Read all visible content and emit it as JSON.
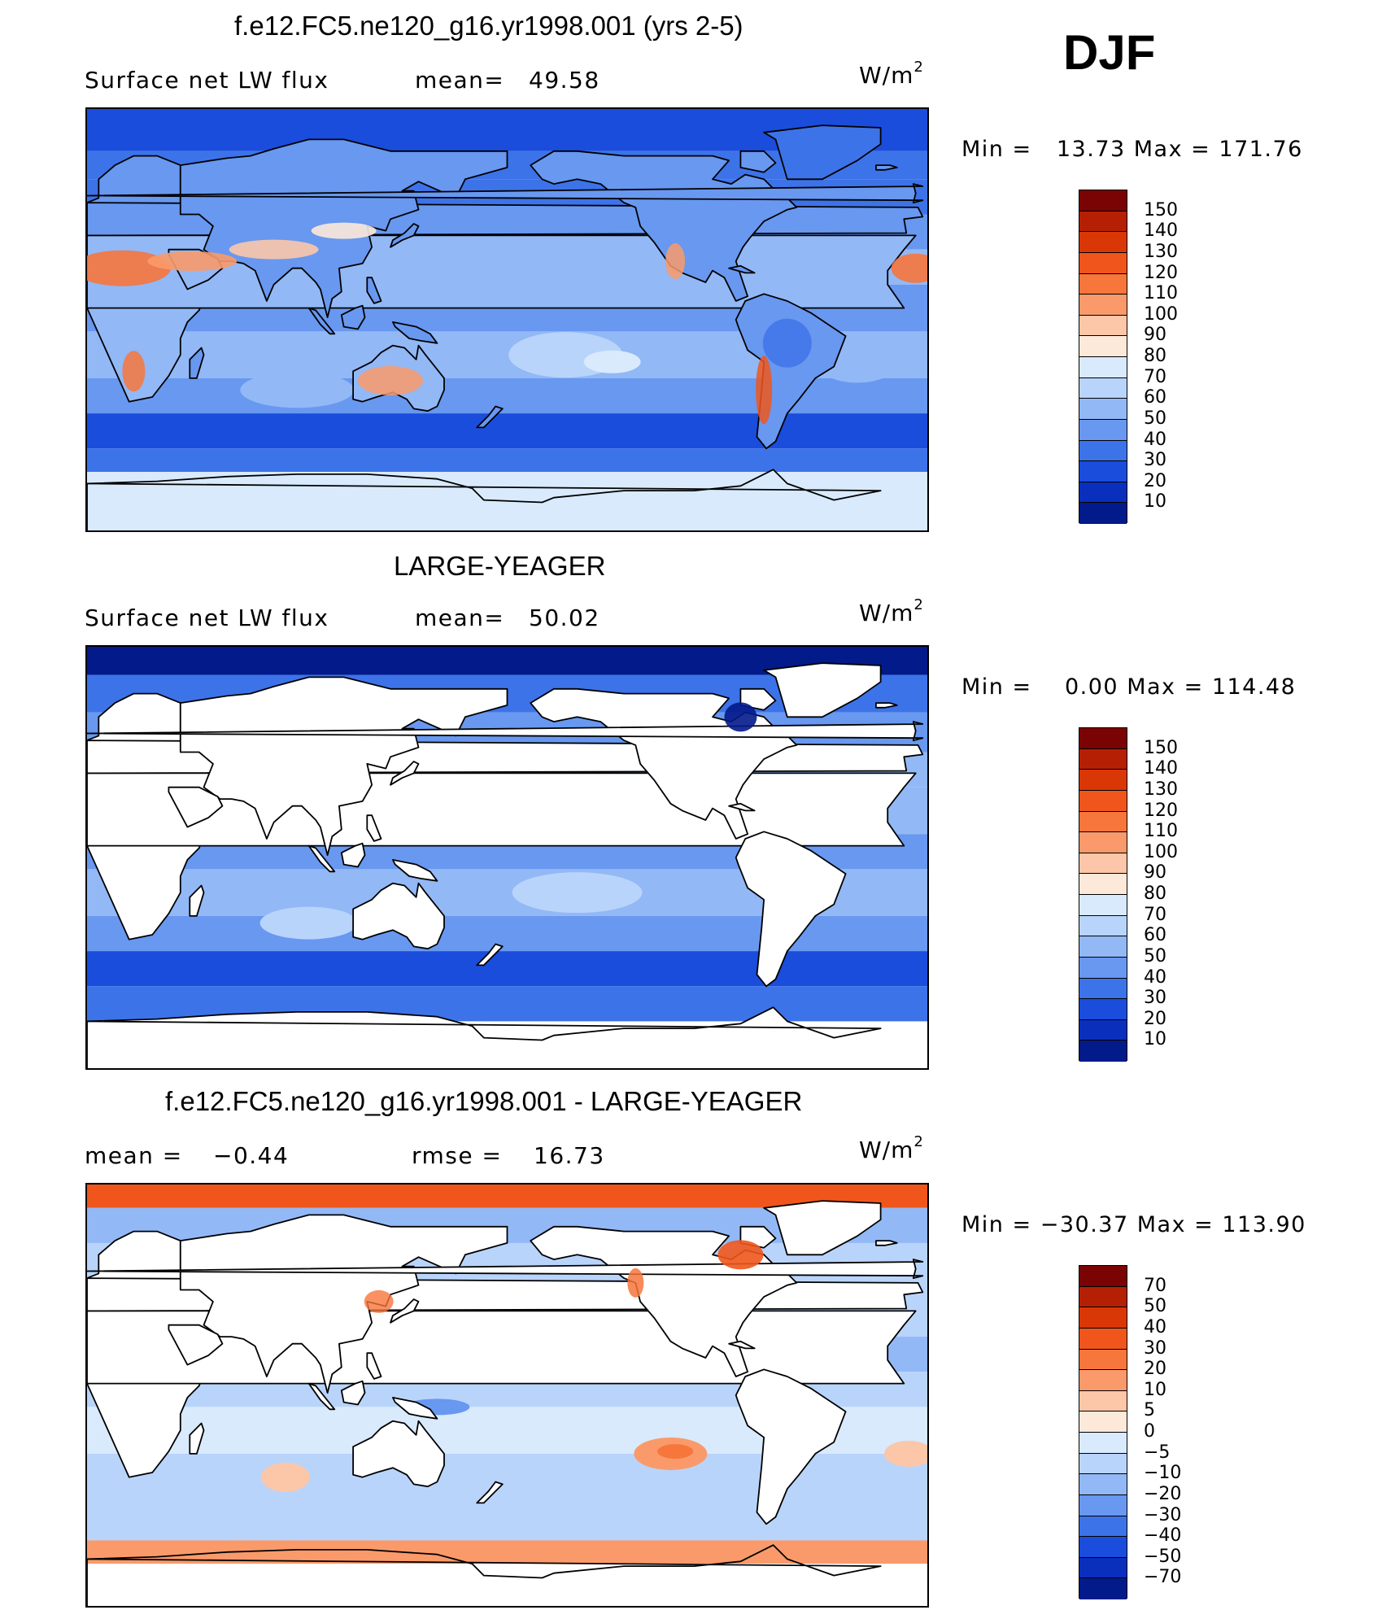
{
  "season": "DJF",
  "panels": [
    {
      "title": "f.e12.FC5.ne120_g16.yr1998.001 (yrs 2-5)",
      "left_label": "Surface net LW flux",
      "stat_label": "mean=",
      "stat_value": "49.58",
      "units_base": "W/m",
      "units_exp": "2",
      "min_label": "Min =",
      "min_value": "13.73",
      "max_label": "Max =",
      "max_value": "171.76",
      "kind": "model",
      "colorbar": {
        "labels": [
          "150",
          "140",
          "130",
          "120",
          "110",
          "100",
          "90",
          "80",
          "70",
          "60",
          "50",
          "40",
          "30",
          "20",
          "10"
        ],
        "colors": [
          "#7a0403",
          "#b52004",
          "#d93806",
          "#f0561c",
          "#f7763c",
          "#fa9a6a",
          "#fcc6a8",
          "#fde9d9",
          "#d8eafc",
          "#b9d4fb",
          "#92b8f6",
          "#6898f0",
          "#3d73e8",
          "#1a4ddb",
          "#0a2fbd",
          "#031a8a"
        ]
      }
    },
    {
      "title": "LARGE-YEAGER",
      "left_label": "Surface net LW flux",
      "stat_label": "mean=",
      "stat_value": "50.02",
      "units_base": "W/m",
      "units_exp": "2",
      "min_label": "Min =",
      "min_value": "0.00",
      "max_label": "Max =",
      "max_value": "114.48",
      "kind": "obs",
      "colorbar": {
        "labels": [
          "150",
          "140",
          "130",
          "120",
          "110",
          "100",
          "90",
          "80",
          "70",
          "60",
          "50",
          "40",
          "30",
          "20",
          "10"
        ],
        "colors": [
          "#7a0403",
          "#b52004",
          "#d93806",
          "#f0561c",
          "#f7763c",
          "#fa9a6a",
          "#fcc6a8",
          "#fde9d9",
          "#d8eafc",
          "#b9d4fb",
          "#92b8f6",
          "#6898f0",
          "#3d73e8",
          "#1a4ddb",
          "#0a2fbd",
          "#031a8a"
        ]
      }
    },
    {
      "title": "f.e12.FC5.ne120_g16.yr1998.001 - LARGE-YEAGER",
      "left_label": "mean =",
      "left_value": "−0.44",
      "stat_label": "rmse =",
      "stat_value": "16.73",
      "units_base": "W/m",
      "units_exp": "2",
      "min_label": "Min =",
      "min_value": "−30.37",
      "max_label": "Max =",
      "max_value": "113.90",
      "kind": "diff",
      "colorbar": {
        "labels": [
          "70",
          "50",
          "40",
          "30",
          "20",
          "10",
          "5",
          "0",
          "−5",
          "−10",
          "−20",
          "−30",
          "−40",
          "−50",
          "−70"
        ],
        "colors": [
          "#7a0403",
          "#b52004",
          "#d93806",
          "#f0561c",
          "#f7763c",
          "#fa9a6a",
          "#fcc6a8",
          "#fde9d9",
          "#d8eafc",
          "#b9d4fb",
          "#92b8f6",
          "#6898f0",
          "#3d73e8",
          "#1a4ddb",
          "#0a2fbd",
          "#031a8a"
        ]
      }
    }
  ]
}
